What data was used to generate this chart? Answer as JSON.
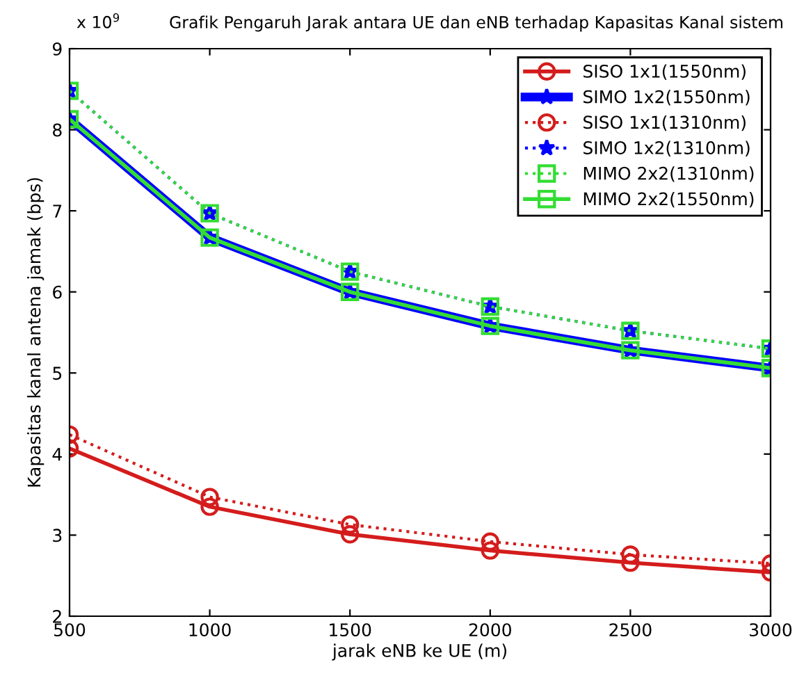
{
  "chart_data": {
    "type": "line",
    "title": "Grafik Pengaruh Jarak antara UE dan eNB terhadap Kapasitas Kanal sistem",
    "xlabel": "jarak eNB ke UE (m)",
    "ylabel": "Kapasitas kanal antena jamak (bps)",
    "annotations": [
      "x 10$^{9}$"
    ],
    "x": [
      500,
      1000,
      1500,
      2000,
      2500,
      3000
    ],
    "series": [
      {
        "name": "SISO 1x1(1550nm)",
        "color": "#d41c1c",
        "line_style": "solid",
        "marker": "circle",
        "values": [
          4.07,
          3.35,
          3.01,
          2.81,
          2.66,
          2.54
        ]
      },
      {
        "name": "SIMO 1x2(1550nm)",
        "color": "#0000ff",
        "line_style": "solid",
        "marker": "star",
        "values": [
          8.13,
          6.67,
          6.0,
          5.58,
          5.28,
          5.06
        ]
      },
      {
        "name": "SISO 1x1(1310nm)",
        "color": "#d41c1c",
        "line_style": "dotted",
        "marker": "circle",
        "values": [
          4.24,
          3.47,
          3.13,
          2.92,
          2.76,
          2.65
        ]
      },
      {
        "name": "SIMO 1x2(1310nm)",
        "color": "#0000ff",
        "line_style": "dotted",
        "marker": "star",
        "values": [
          8.48,
          6.97,
          6.25,
          5.82,
          5.52,
          5.3
        ]
      },
      {
        "name": "MIMO 2x2(1310nm)",
        "color": "#33dd33",
        "line_style": "dotted",
        "marker": "square",
        "values": [
          8.48,
          6.97,
          6.25,
          5.82,
          5.52,
          5.3
        ]
      },
      {
        "name": "MIMO 2x2(1550nm)",
        "color": "#33dd33",
        "line_style": "solid",
        "marker": "square",
        "values": [
          8.13,
          6.67,
          6.0,
          5.58,
          5.28,
          5.06
        ]
      }
    ],
    "xlim": [
      500,
      3000
    ],
    "ylim": [
      2,
      9
    ],
    "xticks": [
      500,
      1000,
      1500,
      2000,
      2500,
      3000
    ],
    "yticks": [
      2,
      3,
      4,
      5,
      6,
      7,
      8,
      9
    ],
    "grid": false,
    "legend": "top right"
  }
}
